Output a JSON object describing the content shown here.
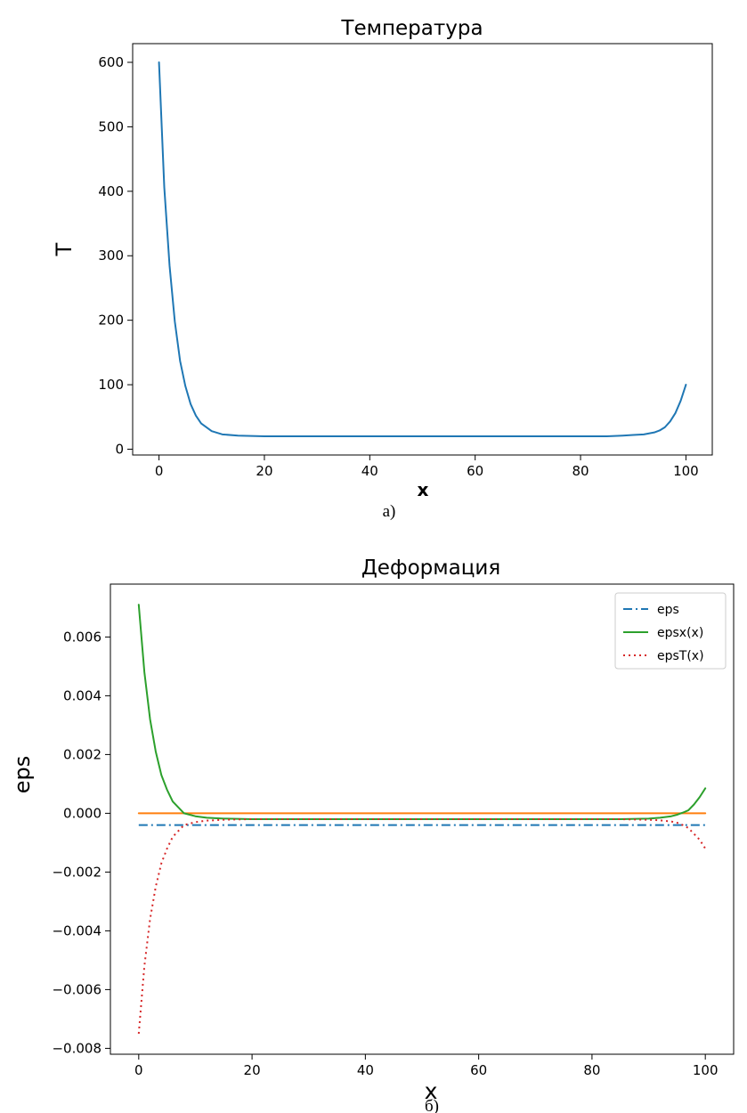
{
  "chart_data": [
    {
      "type": "line",
      "title": "Температура",
      "xlabel": "x",
      "ylabel": "T",
      "caption": "а)",
      "xlim": [
        -5,
        105
      ],
      "ylim": [
        -9,
        629
      ],
      "x_ticks": [
        0,
        20,
        40,
        60,
        80,
        100
      ],
      "x_tick_labels": [
        "0",
        "20",
        "40",
        "60",
        "80",
        "100"
      ],
      "y_ticks": [
        0,
        100,
        200,
        300,
        400,
        500,
        600
      ],
      "y_tick_labels": [
        "0",
        "100",
        "200",
        "300",
        "400",
        "500",
        "600"
      ],
      "grid": false,
      "series": [
        {
          "color": "#1f77b4",
          "style": "solid",
          "x": [
            0,
            1,
            2,
            3,
            4,
            5,
            6,
            7,
            8,
            10,
            12,
            15,
            20,
            30,
            40,
            50,
            60,
            70,
            80,
            85,
            88,
            90,
            92,
            94,
            95,
            96,
            97,
            98,
            99,
            100
          ],
          "y": [
            600,
            406,
            285,
            198,
            137,
            98,
            70,
            52,
            40,
            28,
            23,
            21,
            20,
            20,
            20,
            20,
            20,
            20,
            20,
            20,
            21,
            22,
            23,
            26,
            29,
            34,
            43,
            56,
            75,
            100
          ]
        }
      ]
    },
    {
      "type": "line",
      "title": "Деформация",
      "xlabel": "x",
      "ylabel": "eps",
      "caption": "б)",
      "xlim": [
        -5,
        105
      ],
      "ylim": [
        -0.0082,
        0.0078
      ],
      "x_ticks": [
        0,
        20,
        40,
        60,
        80,
        100
      ],
      "x_tick_labels": [
        "0",
        "20",
        "40",
        "60",
        "80",
        "100"
      ],
      "y_ticks": [
        -0.008,
        -0.006,
        -0.004,
        -0.002,
        0.0,
        0.002,
        0.004,
        0.006
      ],
      "y_tick_labels": [
        "−0.008",
        "−0.006",
        "−0.004",
        "−0.002",
        "0.000",
        "0.002",
        "0.004",
        "0.006"
      ],
      "grid": false,
      "legend_position": "top-right",
      "legend": [
        "eps",
        "epsx(x)",
        "epsT(x)"
      ],
      "series": [
        {
          "name": "eps",
          "color": "#1f77b4",
          "style": "dashdot",
          "in_legend": true,
          "x": [
            0,
            100
          ],
          "y": [
            -0.0004,
            -0.0004
          ]
        },
        {
          "color": "#ff7f0e",
          "style": "solid",
          "in_legend": false,
          "x": [
            0,
            100
          ],
          "y": [
            0.0,
            0.0
          ]
        },
        {
          "name": "epsx(x)",
          "color": "#2ca02c",
          "style": "solid",
          "in_legend": true,
          "x": [
            0,
            1,
            2,
            3,
            4,
            5,
            6,
            7,
            8,
            10,
            12,
            15,
            20,
            30,
            50,
            70,
            85,
            90,
            92,
            94,
            95,
            96,
            97,
            98,
            99,
            100
          ],
          "y": [
            0.0071,
            0.0048,
            0.0032,
            0.0021,
            0.0013,
            0.0008,
            0.0004,
            0.0002,
            0.0,
            -0.0001,
            -0.00015,
            -0.00018,
            -0.0002,
            -0.0002,
            -0.0002,
            -0.0002,
            -0.0002,
            -0.00018,
            -0.00015,
            -0.0001,
            -5e-05,
            2e-05,
            0.0001,
            0.0003,
            0.00055,
            0.00085
          ]
        },
        {
          "name": "epsT(x)",
          "color": "#d62728",
          "style": "dotted",
          "in_legend": true,
          "x": [
            0,
            1,
            2,
            3,
            4,
            5,
            6,
            7,
            8,
            10,
            12,
            15,
            20,
            30,
            50,
            70,
            85,
            90,
            92,
            94,
            95,
            96,
            97,
            98,
            99,
            100
          ],
          "y": [
            -0.0075,
            -0.0052,
            -0.0036,
            -0.0025,
            -0.0017,
            -0.0012,
            -0.0008,
            -0.0006,
            -0.0004,
            -0.0003,
            -0.00025,
            -0.00022,
            -0.0002,
            -0.0002,
            -0.0002,
            -0.0002,
            -0.0002,
            -0.00022,
            -0.00024,
            -0.00028,
            -0.00032,
            -0.0004,
            -0.0005,
            -0.0007,
            -0.0009,
            -0.0012
          ]
        }
      ]
    }
  ]
}
